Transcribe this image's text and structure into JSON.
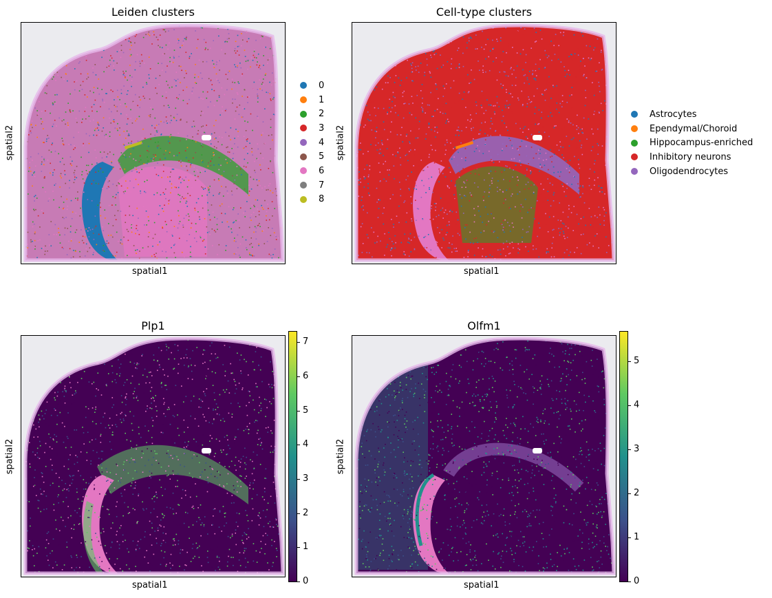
{
  "chart_data": [
    {
      "type": "scatter",
      "title": "Leiden clusters",
      "xlabel": "spatial1",
      "ylabel": "spatial2",
      "legend_position": "right",
      "legend": [
        {
          "label": "0",
          "color": "#1f77b4"
        },
        {
          "label": "1",
          "color": "#ff7f0e"
        },
        {
          "label": "2",
          "color": "#2ca02c"
        },
        {
          "label": "3",
          "color": "#d62728"
        },
        {
          "label": "4",
          "color": "#9467bd"
        },
        {
          "label": "5",
          "color": "#8c564b"
        },
        {
          "label": "6",
          "color": "#e377c2"
        },
        {
          "label": "7",
          "color": "#7f7f7f"
        },
        {
          "label": "8",
          "color": "#bcbd22"
        }
      ]
    },
    {
      "type": "scatter",
      "title": "Cell-type clusters",
      "xlabel": "spatial1",
      "ylabel": "spatial2",
      "legend_position": "right",
      "legend": [
        {
          "label": "Astrocytes",
          "color": "#1f77b4"
        },
        {
          "label": "Ependymal/Choroid",
          "color": "#ff7f0e"
        },
        {
          "label": "Hippocampus-enriched",
          "color": "#2ca02c"
        },
        {
          "label": "Inhibitory neurons",
          "color": "#d62728"
        },
        {
          "label": "Oligodendrocytes",
          "color": "#9467bd"
        }
      ]
    },
    {
      "type": "scatter",
      "title": "Plp1",
      "xlabel": "spatial1",
      "ylabel": "spatial2",
      "colorbar": {
        "ticks": [
          "0",
          "1",
          "2",
          "3",
          "4",
          "5",
          "6",
          "7"
        ],
        "range": [
          0,
          7.35
        ],
        "colormap": "viridis"
      }
    },
    {
      "type": "scatter",
      "title": "Olfm1",
      "xlabel": "spatial1",
      "ylabel": "spatial2",
      "colorbar": {
        "ticks": [
          "0",
          "1",
          "2",
          "3",
          "4",
          "5"
        ],
        "range": [
          0,
          5.7
        ],
        "colormap": "viridis"
      }
    }
  ]
}
